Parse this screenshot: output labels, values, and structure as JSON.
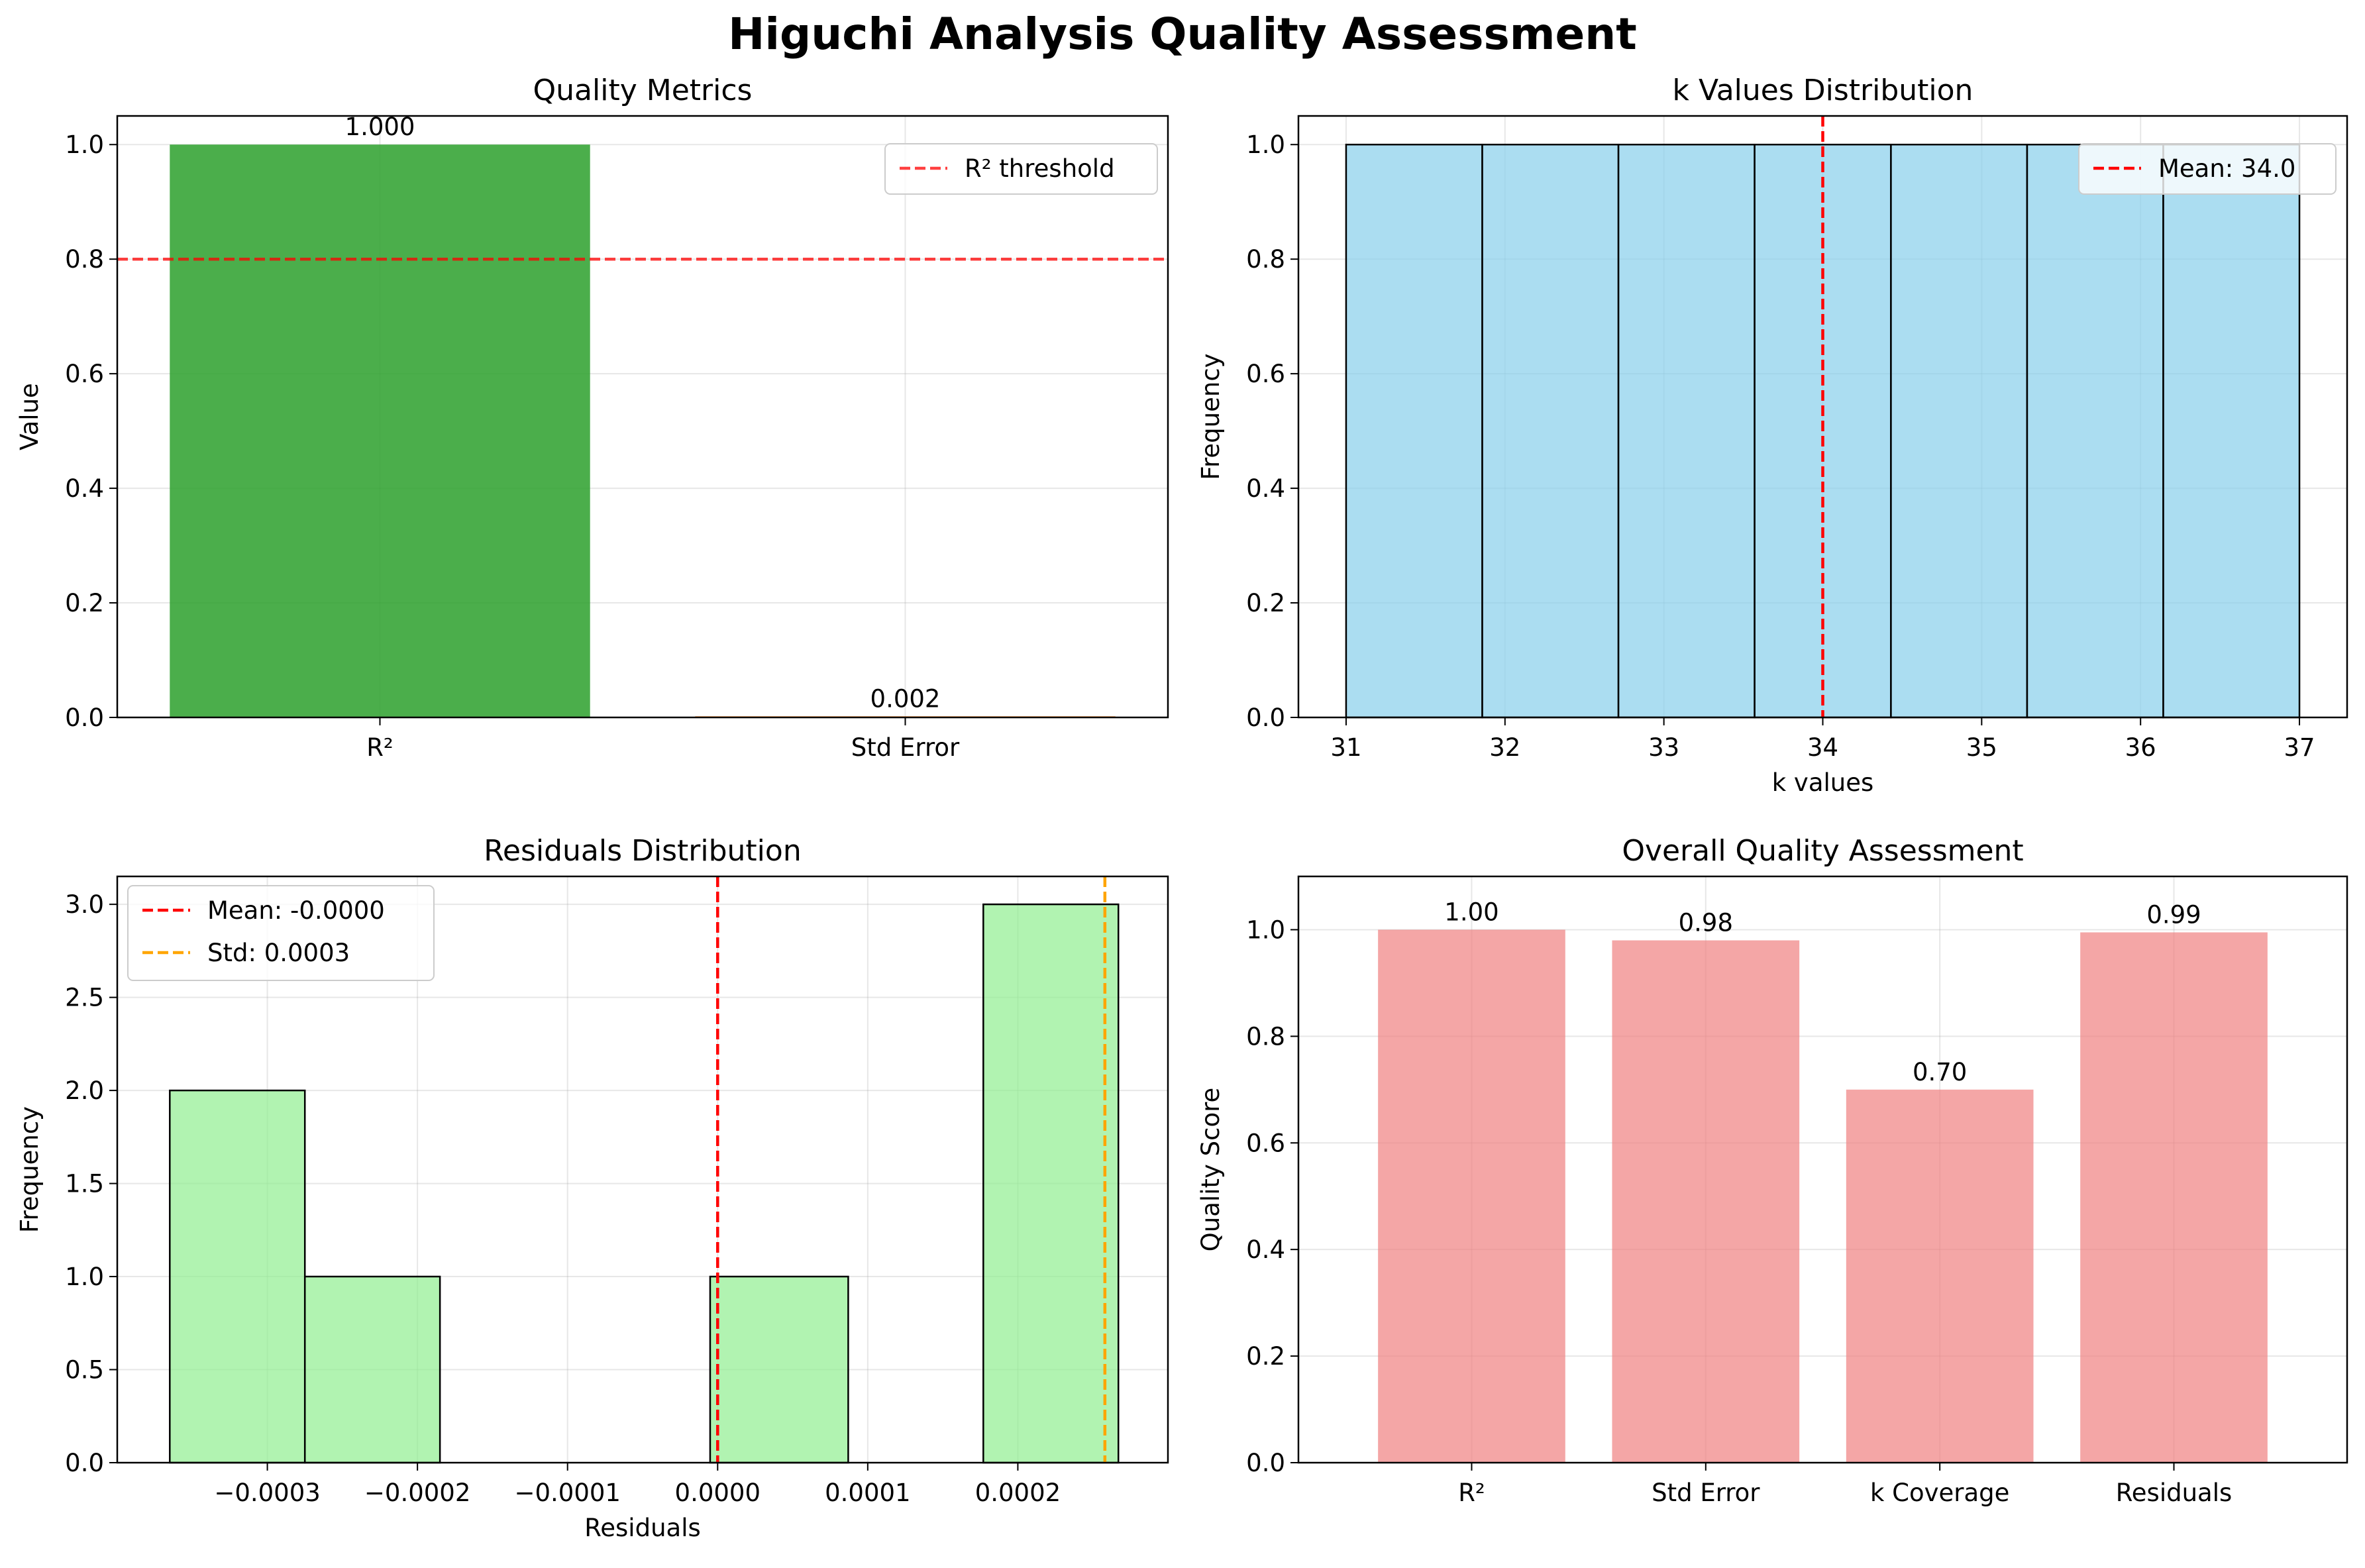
{
  "figure": {
    "suptitle": "Higuchi Analysis Quality Assessment"
  },
  "chart_data": [
    {
      "id": "quality",
      "type": "bar",
      "title": "Quality Metrics",
      "xlabel": "",
      "ylabel": "Value",
      "categories": [
        "R²",
        "Std Error"
      ],
      "values": [
        1.0,
        0.002
      ],
      "value_labels": [
        "1.000",
        "0.002"
      ],
      "colors": [
        "#2ca02c",
        "#ff7f0e"
      ],
      "ylim": [
        0,
        1.05
      ],
      "yticks": [
        0.0,
        0.2,
        0.4,
        0.6,
        0.8,
        1.0
      ],
      "ytick_labels": [
        "0.0",
        "0.2",
        "0.4",
        "0.6",
        "0.8",
        "1.0"
      ],
      "hline": {
        "y": 0.8,
        "color": "#ff0000",
        "label": "R² threshold"
      },
      "legend": {
        "position": "upper right",
        "entries": [
          "R² threshold"
        ]
      },
      "grid": true
    },
    {
      "id": "kvals",
      "type": "bar",
      "subtype": "histogram",
      "title": "k Values Distribution",
      "xlabel": "k values",
      "ylabel": "Frequency",
      "bin_edges": [
        31.0,
        31.857,
        32.714,
        33.571,
        34.429,
        35.286,
        36.143,
        37.0
      ],
      "counts": [
        1,
        1,
        1,
        1,
        1,
        1,
        1
      ],
      "color": "#87ceeb",
      "xlim": [
        30.7,
        37.3
      ],
      "ylim": [
        0,
        1.05
      ],
      "xticks": [
        31,
        32,
        33,
        34,
        35,
        36,
        37
      ],
      "xtick_labels": [
        "31",
        "32",
        "33",
        "34",
        "35",
        "36",
        "37"
      ],
      "yticks": [
        0.0,
        0.2,
        0.4,
        0.6,
        0.8,
        1.0
      ],
      "ytick_labels": [
        "0.0",
        "0.2",
        "0.4",
        "0.6",
        "0.8",
        "1.0"
      ],
      "vline": {
        "x": 34.0,
        "color": "#ff0000",
        "label": "Mean: 34.0"
      },
      "legend": {
        "position": "upper right",
        "entries": [
          "Mean: 34.0"
        ]
      },
      "grid": true
    },
    {
      "id": "resid",
      "type": "bar",
      "subtype": "histogram",
      "title": "Residuals Distribution",
      "xlabel": "Residuals",
      "ylabel": "Frequency",
      "bin_edges": [
        -0.000365,
        -0.000275,
        -0.000185,
        -9.5e-05,
        -5e-06,
        8.7e-05,
        0.000177,
        0.000267
      ],
      "counts": [
        2,
        1,
        0,
        0,
        1,
        0,
        3
      ],
      "color": "#90ee90",
      "xlim": [
        -0.0004,
        0.0003
      ],
      "ylim": [
        0,
        3.15
      ],
      "xticks": [
        -0.0003,
        -0.0002,
        -0.0001,
        0.0,
        0.0001,
        0.0002
      ],
      "xtick_labels": [
        "−0.0003",
        "−0.0002",
        "−0.0001",
        "0.0000",
        "0.0001",
        "0.0002"
      ],
      "yticks": [
        0.0,
        0.5,
        1.0,
        1.5,
        2.0,
        2.5,
        3.0
      ],
      "ytick_labels": [
        "0.0",
        "0.5",
        "1.0",
        "1.5",
        "2.0",
        "2.5",
        "3.0"
      ],
      "vlines": [
        {
          "x": 0.0,
          "color": "#ff0000",
          "label": "Mean: -0.0000"
        },
        {
          "x": 0.000258,
          "color": "#ffa500",
          "label": "Std: 0.0003"
        }
      ],
      "legend": {
        "position": "upper left",
        "entries": [
          "Mean: -0.0000",
          "Std: 0.0003"
        ]
      },
      "grid": true
    },
    {
      "id": "overall",
      "type": "bar",
      "title": "Overall Quality Assessment",
      "xlabel": "",
      "ylabel": "Quality Score",
      "categories": [
        "R²",
        "Std Error",
        "k Coverage",
        "Residuals"
      ],
      "values": [
        1.0,
        0.98,
        0.7,
        0.995
      ],
      "value_labels": [
        "1.00",
        "0.98",
        "0.70",
        "0.99"
      ],
      "color": "#f08080",
      "ylim": [
        0,
        1.1
      ],
      "yticks": [
        0.0,
        0.2,
        0.4,
        0.6,
        0.8,
        1.0
      ],
      "ytick_labels": [
        "0.0",
        "0.2",
        "0.4",
        "0.6",
        "0.8",
        "1.0"
      ],
      "grid": true
    }
  ]
}
